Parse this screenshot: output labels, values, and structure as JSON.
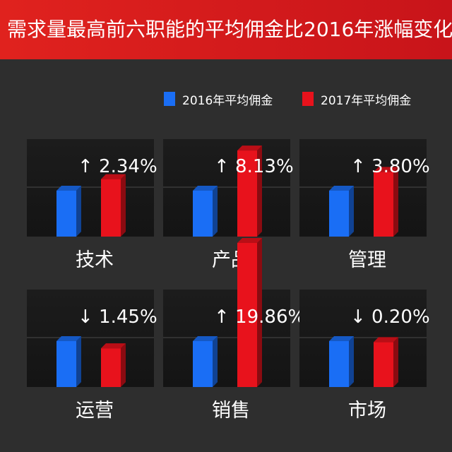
{
  "header": {
    "title": "需求量最高前六职能的平均佣金比2016年涨幅变化"
  },
  "legend": {
    "items": [
      {
        "label": "2016年平均佣金",
        "color": "#1a6ef5"
      },
      {
        "label": "2017年平均佣金",
        "color": "#e8121c"
      }
    ]
  },
  "chart_data": {
    "type": "bar",
    "series": [
      {
        "name": "2016年平均佣金",
        "color": "#1a6ef5"
      },
      {
        "name": "2017年平均佣金",
        "color": "#e8121c"
      }
    ],
    "panels": [
      {
        "category": "技术",
        "change": "↑ 2.34%",
        "direction": "up",
        "change_pct": 2.34,
        "values": [
          100,
          102.34
        ]
      },
      {
        "category": "产品",
        "change": "↑ 8.13%",
        "direction": "up",
        "change_pct": 8.13,
        "values": [
          100,
          108.13
        ]
      },
      {
        "category": "管理",
        "change": "↑ 3.80%",
        "direction": "up",
        "change_pct": 3.8,
        "values": [
          100,
          103.8
        ]
      },
      {
        "category": "运营",
        "change": "↓ 1.45%",
        "direction": "down",
        "change_pct": -1.45,
        "values": [
          100,
          98.55
        ]
      },
      {
        "category": "销售",
        "change": "↑ 19.86%",
        "direction": "up",
        "change_pct": 19.86,
        "values": [
          100,
          119.86
        ]
      },
      {
        "category": "市场",
        "change": "↓ 0.20%",
        "direction": "down",
        "change_pct": -0.2,
        "values": [
          100,
          99.8
        ]
      }
    ]
  }
}
